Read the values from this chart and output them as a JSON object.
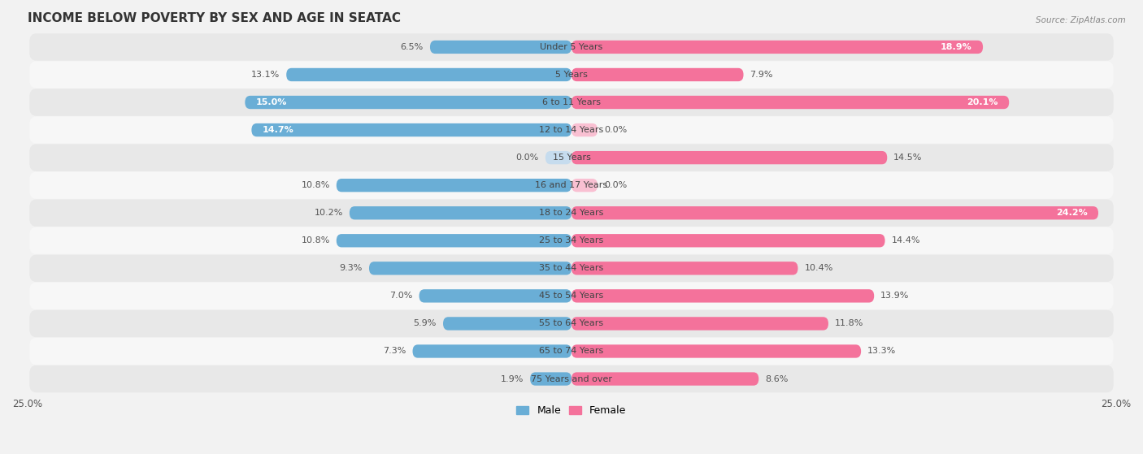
{
  "title": "INCOME BELOW POVERTY BY SEX AND AGE IN SEATAC",
  "source": "Source: ZipAtlas.com",
  "categories": [
    "Under 5 Years",
    "5 Years",
    "6 to 11 Years",
    "12 to 14 Years",
    "15 Years",
    "16 and 17 Years",
    "18 to 24 Years",
    "25 to 34 Years",
    "35 to 44 Years",
    "45 to 54 Years",
    "55 to 64 Years",
    "65 to 74 Years",
    "75 Years and over"
  ],
  "male": [
    6.5,
    13.1,
    15.0,
    14.7,
    0.0,
    10.8,
    10.2,
    10.8,
    9.3,
    7.0,
    5.9,
    7.3,
    1.9
  ],
  "female": [
    18.9,
    7.9,
    20.1,
    0.0,
    14.5,
    0.0,
    24.2,
    14.4,
    10.4,
    13.9,
    11.8,
    13.3,
    8.6
  ],
  "male_color": "#6aaed6",
  "female_color": "#f4729b",
  "male_color_light": "#c6dcee",
  "female_color_light": "#f9c0d2",
  "male_label": "Male",
  "female_label": "Female",
  "xlim": 25.0,
  "bar_height": 0.48,
  "background_color": "#f2f2f2",
  "row_color_odd": "#e8e8e8",
  "row_color_even": "#f7f7f7",
  "title_fontsize": 11,
  "label_fontsize": 8,
  "value_fontsize": 8,
  "axis_label_fontsize": 8.5
}
